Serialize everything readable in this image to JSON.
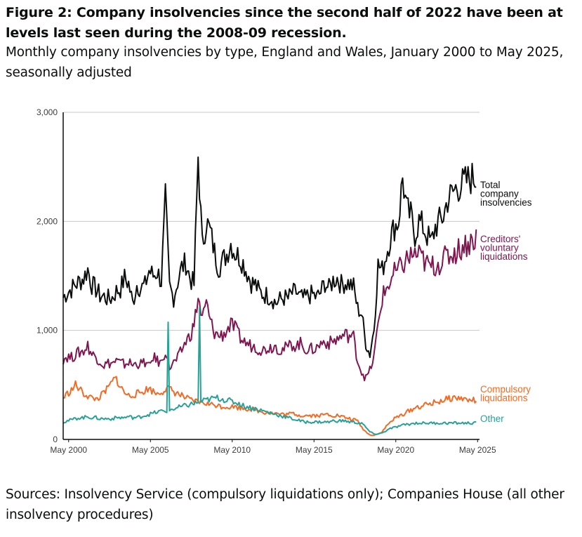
{
  "title": "Figure 2: Company insolvencies since the second half of 2022 have been at levels last seen during the 2008-09 recession.",
  "subtitle": "Monthly company insolvencies by type, England and Wales, January 2000 to May 2025, seasonally adjusted",
  "source": "Sources: Insolvency Service (compulsory liquidations only); Companies House (all other insolvency procedures)",
  "chart_data": {
    "type": "line",
    "x_start": "2000-01",
    "x_end": "2025-05",
    "ylim": [
      0,
      3000
    ],
    "y_ticks": [
      0,
      1000,
      2000,
      3000
    ],
    "y_tick_labels": [
      "0",
      "1,000",
      "2,000",
      "3,000"
    ],
    "x_tick_labels": [
      "May 2000",
      "May 2005",
      "May 2010",
      "May 2015",
      "May 2020",
      "May 2025"
    ],
    "x_tick_values": [
      "2000-05",
      "2005-05",
      "2010-05",
      "2015-05",
      "2020-05",
      "2025-05"
    ],
    "grid": true,
    "legend": "direct labels at right end of lines",
    "series": [
      {
        "name": "Total company insolvencies",
        "label_lines": [
          "Total",
          "company",
          "insolvencies"
        ],
        "color": "#0b0c0c",
        "stride": 3,
        "values": [
          1300,
          1350,
          1380,
          1420,
          1450,
          1480,
          1560,
          1420,
          1380,
          1320,
          1310,
          1290,
          1300,
          1360,
          1380,
          1480,
          1430,
          1250,
          1420,
          1390,
          1410,
          1550,
          1500,
          1540,
          1450,
          2200,
          1400,
          1300,
          1450,
          1580,
          1620,
          1480,
          1420,
          2600,
          1780,
          2000,
          1900,
          1720,
          1580,
          1640,
          1700,
          1800,
          1710,
          1680,
          1620,
          1530,
          1440,
          1420,
          1350,
          1330,
          1320,
          1300,
          1250,
          1280,
          1300,
          1290,
          1340,
          1350,
          1300,
          1290,
          1320,
          1330,
          1300,
          1350,
          1440,
          1380,
          1460,
          1480,
          1420,
          1440,
          1430,
          1400,
          1200,
          1150,
          880,
          780,
          1020,
          1600,
          1550,
          1700,
          1850,
          1950,
          2000,
          2400,
          2100,
          2050,
          1880,
          2000,
          1950,
          1870,
          1800,
          1950,
          2000,
          2050,
          2200,
          2250,
          2300,
          2330,
          2350,
          2380,
          2400,
          2400
        ]
      },
      {
        "name": "Creditors' voluntary liquidations",
        "label_lines": [
          "Creditors'",
          "voluntary",
          "liquidations"
        ],
        "color": "#801650",
        "stride": 3,
        "values": [
          740,
          760,
          750,
          780,
          800,
          810,
          860,
          780,
          760,
          720,
          680,
          700,
          700,
          720,
          700,
          690,
          710,
          680,
          700,
          690,
          710,
          660,
          760,
          720,
          700,
          820,
          660,
          700,
          740,
          820,
          900,
          950,
          1050,
          1300,
          1100,
          1250,
          1080,
          980,
          950,
          960,
          1000,
          1050,
          1020,
          950,
          900,
          880,
          860,
          850,
          830,
          820,
          840,
          850,
          860,
          820,
          830,
          850,
          870,
          860,
          880,
          840,
          820,
          830,
          840,
          880,
          900,
          880,
          900,
          920,
          940,
          960,
          950,
          940,
          720,
          620,
          560,
          630,
          760,
          1050,
          1300,
          1380,
          1450,
          1520,
          1550,
          1600,
          1650,
          1680,
          1700,
          1680,
          1650,
          1600,
          1580,
          1600,
          1620,
          1650,
          1680,
          1700,
          1720,
          1750,
          1780,
          1800,
          1820,
          1850
        ]
      },
      {
        "name": "Compulsory liquidations",
        "label_lines": [
          "Compulsory",
          "liquidations"
        ],
        "color": "#f46a25",
        "stride": 3,
        "values": [
          380,
          420,
          450,
          500,
          460,
          420,
          400,
          380,
          370,
          390,
          430,
          470,
          530,
          560,
          480,
          430,
          400,
          410,
          420,
          430,
          450,
          470,
          440,
          420,
          440,
          460,
          460,
          440,
          420,
          400,
          380,
          360,
          350,
          350,
          340,
          330,
          320,
          320,
          310,
          300,
          300,
          300,
          300,
          290,
          290,
          280,
          280,
          270,
          260,
          250,
          250,
          240,
          240,
          230,
          230,
          230,
          240,
          230,
          220,
          220,
          220,
          220,
          220,
          220,
          230,
          230,
          220,
          220,
          210,
          200,
          190,
          180,
          170,
          110,
          70,
          40,
          40,
          50,
          70,
          120,
          160,
          190,
          210,
          230,
          250,
          270,
          290,
          300,
          310,
          320,
          330,
          340,
          350,
          360,
          370,
          380,
          380,
          380,
          370,
          360,
          360,
          360
        ]
      },
      {
        "name": "Other",
        "label_lines": [
          "Other"
        ],
        "color": "#28a197",
        "stride": 3,
        "values": [
          160,
          170,
          180,
          190,
          200,
          200,
          210,
          200,
          200,
          190,
          190,
          190,
          190,
          200,
          200,
          200,
          210,
          200,
          200,
          210,
          220,
          230,
          240,
          250,
          260,
          260,
          270,
          280,
          290,
          300,
          310,
          320,
          330,
          340,
          350,
          360,
          370,
          380,
          380,
          370,
          360,
          350,
          340,
          330,
          310,
          300,
          290,
          280,
          270,
          260,
          250,
          240,
          230,
          220,
          210,
          200,
          190,
          180,
          170,
          160,
          160,
          160,
          160,
          160,
          160,
          160,
          170,
          170,
          170,
          170,
          160,
          160,
          150,
          150,
          110,
          70,
          50,
          50,
          60,
          80,
          100,
          110,
          120,
          130,
          140,
          140,
          150,
          150,
          150,
          150,
          150,
          150,
          150,
          150,
          150,
          150,
          150,
          150,
          150,
          150,
          150,
          150
        ],
        "spikes": [
          {
            "date": "2006-06",
            "value": 1075
          },
          {
            "date": "2008-05",
            "value": 1210
          }
        ]
      }
    ]
  }
}
